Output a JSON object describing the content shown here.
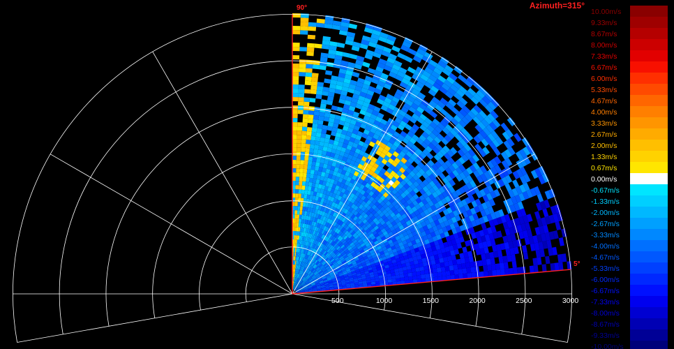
{
  "title": "Azimuth=315°",
  "title_color": "#ff2020",
  "sector_labels": {
    "start": "90°",
    "end": "5°"
  },
  "sector_color": "#ff2020",
  "range_labels": [
    "500",
    "1000",
    "1500",
    "2000",
    "2500",
    "3000"
  ],
  "colorbar": {
    "entries": [
      {
        "label": "10.00m/s",
        "color": "#8a0000"
      },
      {
        "label": "9.33m/s",
        "color": "#9f0000"
      },
      {
        "label": "8.67m/s",
        "color": "#b50000"
      },
      {
        "label": "8.00m/s",
        "color": "#cc0000"
      },
      {
        "label": "7.33m/s",
        "color": "#e20000"
      },
      {
        "label": "6.67m/s",
        "color": "#f81000"
      },
      {
        "label": "6.00m/s",
        "color": "#ff2f00"
      },
      {
        "label": "5.33m/s",
        "color": "#ff4a00"
      },
      {
        "label": "4.67m/s",
        "color": "#ff6600"
      },
      {
        "label": "4.00m/s",
        "color": "#ff7f00"
      },
      {
        "label": "3.33m/s",
        "color": "#ff9500"
      },
      {
        "label": "2.67m/s",
        "color": "#ffab00"
      },
      {
        "label": "2.00m/s",
        "color": "#ffbf00"
      },
      {
        "label": "1.33m/s",
        "color": "#ffd200"
      },
      {
        "label": "0.67m/s",
        "color": "#ffe600"
      },
      {
        "label": "0.00m/s",
        "color": "#ffffff"
      },
      {
        "label": "-0.67m/s",
        "color": "#00e5ff"
      },
      {
        "label": "-1.33m/s",
        "color": "#00cfff"
      },
      {
        "label": "-2.00m/s",
        "color": "#00b8ff"
      },
      {
        "label": "-2.67m/s",
        "color": "#00a0ff"
      },
      {
        "label": "-3.33m/s",
        "color": "#0088ff"
      },
      {
        "label": "-4.00m/s",
        "color": "#0070ff"
      },
      {
        "label": "-4.67m/s",
        "color": "#0058ff"
      },
      {
        "label": "-5.33m/s",
        "color": "#0040ff"
      },
      {
        "label": "-6.00m/s",
        "color": "#0028ff"
      },
      {
        "label": "-6.67m/s",
        "color": "#0010ff"
      },
      {
        "label": "-7.33m/s",
        "color": "#0000ef"
      },
      {
        "label": "-8.00m/s",
        "color": "#0000d2"
      },
      {
        "label": "-8.67m/s",
        "color": "#0000b4"
      },
      {
        "label": "-9.33m/s",
        "color": "#000096"
      },
      {
        "label": "-10.00m/s",
        "color": "#00007a"
      }
    ]
  }
}
